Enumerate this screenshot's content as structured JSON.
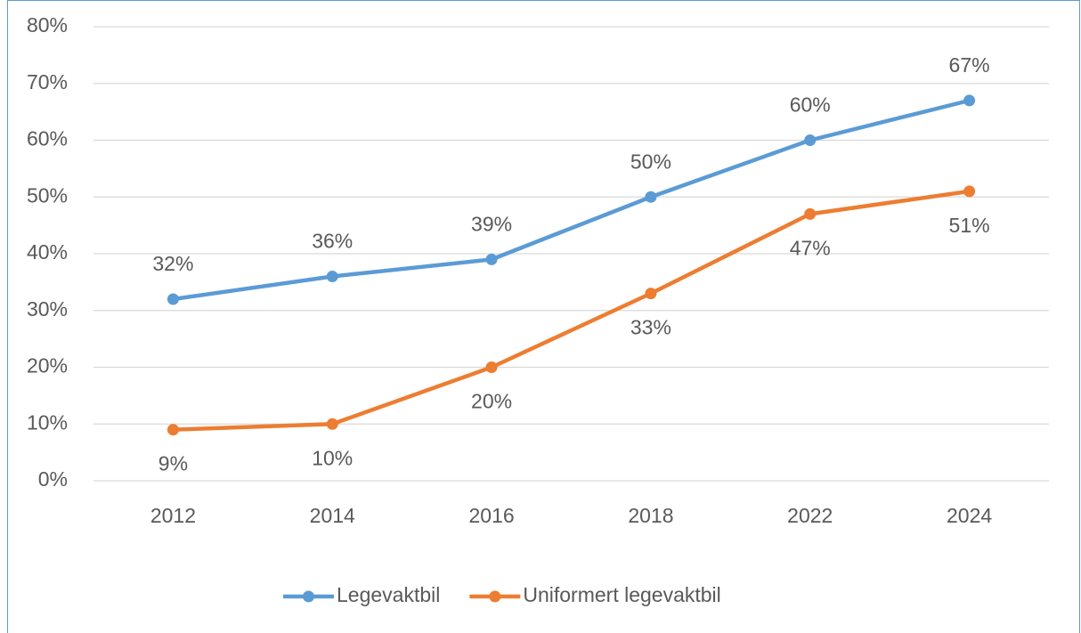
{
  "chart_data": {
    "type": "line",
    "categories": [
      "2012",
      "2014",
      "2016",
      "2018",
      "2022",
      "2024"
    ],
    "series": [
      {
        "name": "Legevaktbil",
        "color": "#5b9bd5",
        "values": [
          32,
          36,
          39,
          50,
          60,
          67
        ],
        "value_labels": [
          "32%",
          "36%",
          "39%",
          "50%",
          "60%",
          "67%"
        ],
        "label_position": "above"
      },
      {
        "name": "Uniformert legevaktbil",
        "color": "#ed7d31",
        "values": [
          9,
          10,
          20,
          33,
          47,
          51
        ],
        "value_labels": [
          "9%",
          "10%",
          "20%",
          "33%",
          "47%",
          "51%"
        ],
        "label_position": "below"
      }
    ],
    "ylim": [
      0,
      80
    ],
    "yticks": [
      {
        "value": 0,
        "label": "0%"
      },
      {
        "value": 10,
        "label": "10%"
      },
      {
        "value": 20,
        "label": "20%"
      },
      {
        "value": 30,
        "label": "30%"
      },
      {
        "value": 40,
        "label": "40%"
      },
      {
        "value": 50,
        "label": "50%"
      },
      {
        "value": 60,
        "label": "60%"
      },
      {
        "value": 70,
        "label": "70%"
      },
      {
        "value": 80,
        "label": "80%"
      }
    ],
    "grid": true,
    "legend": "bottom"
  }
}
